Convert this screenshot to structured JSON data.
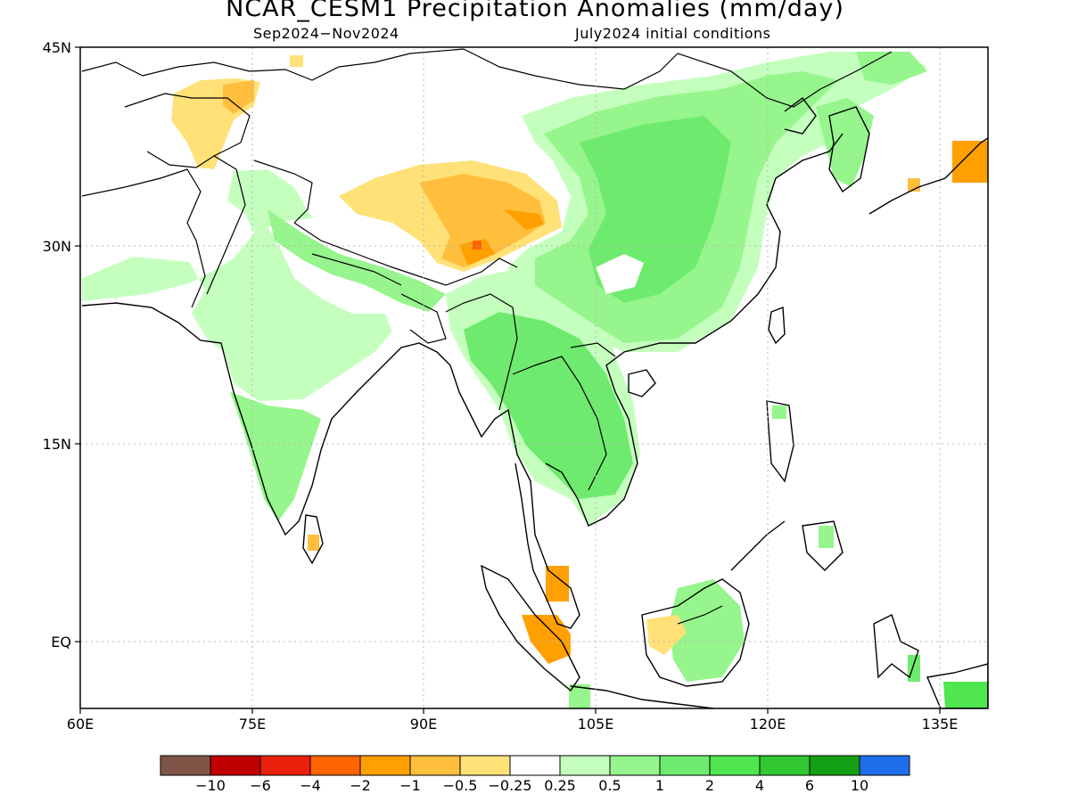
{
  "title": "NCAR_CESM1 Precipitation Anomalies (mm/day)",
  "period": "Sep2024−Nov2024",
  "initial_conditions": "July2024 initial conditions",
  "lat_labels": [
    "45N",
    "30N",
    "15N",
    "EQ"
  ],
  "lon_labels": [
    "60E",
    "75E",
    "90E",
    "105E",
    "120E",
    "135E"
  ],
  "colorbar": {
    "colors": [
      "#7f5548",
      "#c00000",
      "#e8200c",
      "#ff6400",
      "#ffa000",
      "#ffbe3c",
      "#ffe178",
      "#ffffff",
      "#c4ffbe",
      "#96f58c",
      "#6eeb6e",
      "#50e650",
      "#32c832",
      "#14a014",
      "#1e6eeb"
    ],
    "labels": [
      "−10",
      "−6",
      "−4",
      "−2",
      "−1",
      "−0.5",
      "−0.25",
      "0.25",
      "0.5",
      "1",
      "2",
      "4",
      "6",
      "10"
    ]
  }
}
